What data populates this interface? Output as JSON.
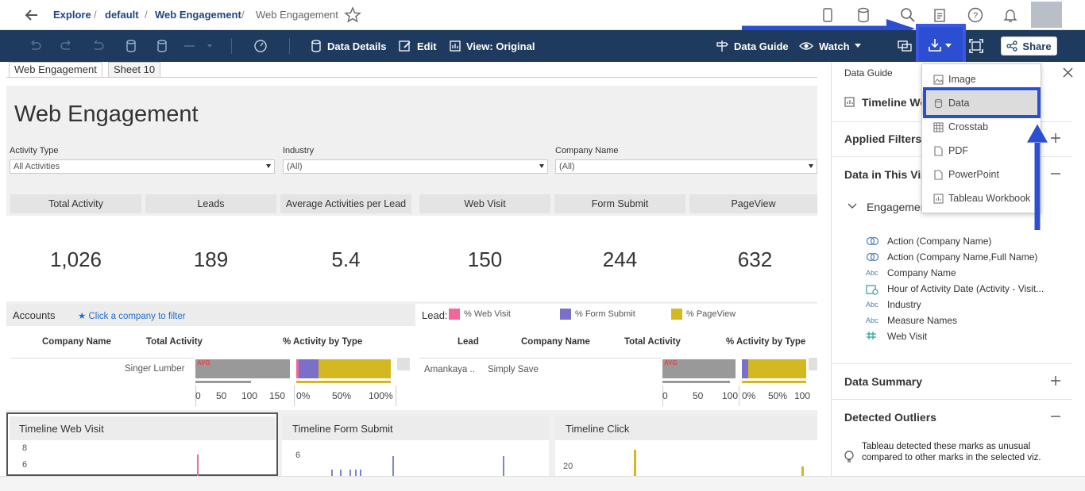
{
  "breadcrumb": {
    "back_icon": "arrow-left-icon",
    "items": [
      "Explore",
      "default",
      "Web Engagement"
    ],
    "current": "Web Engagement",
    "sep": "/"
  },
  "toolbar": {
    "data_details": "Data Details",
    "edit": "Edit",
    "view": "View: Original",
    "data_guide": "Data Guide",
    "watch": "Watch",
    "share": "Share"
  },
  "tabs": [
    "Web Engagement",
    "Sheet 10"
  ],
  "dashboard": {
    "title": "Web Engagement",
    "filters": [
      {
        "label": "Activity Type",
        "value": "All Activities"
      },
      {
        "label": "Industry",
        "value": "(All)"
      },
      {
        "label": "Company Name",
        "value": "(All)"
      }
    ],
    "kpis": [
      {
        "label": "Total Activity",
        "value": "1,026"
      },
      {
        "label": "Leads",
        "value": "189"
      },
      {
        "label": "Average Activities per Lead",
        "value": "5.4"
      },
      {
        "label": "Web Visit",
        "value": "150"
      },
      {
        "label": "Form Submit",
        "value": "244"
      },
      {
        "label": "PageView",
        "value": "632"
      }
    ],
    "accounts": {
      "title": "Accounts",
      "hint": "★ Click a company to filter",
      "columns": [
        "Company Name",
        "Total Activity",
        "% Activity by Type"
      ],
      "row_company": "Singer Lumber",
      "avg_label": "AVG",
      "ticks_activity": [
        "0",
        "50",
        "100",
        "150"
      ],
      "ticks_pct": [
        "0%",
        "50%",
        "100%"
      ]
    },
    "lead": {
      "title": "Lead:",
      "legend": [
        "% Web Visit",
        "% Form Submit",
        "% PageView"
      ],
      "columns": [
        "Lead",
        "Company Name",
        "Total Activity",
        "% Activity by Type"
      ],
      "row_lead": "Amankaya ..",
      "row_company": "Simply Save",
      "avg_label": "AVG",
      "ticks_activity": [
        "0",
        "50",
        "100"
      ],
      "ticks_pct": [
        "0%",
        "50%",
        "100"
      ]
    },
    "timelines": [
      {
        "title": "Timeline Web Visit",
        "yticks": [
          "8",
          "6"
        ]
      },
      {
        "title": "Timeline Form Submit",
        "yticks": [
          "6"
        ]
      },
      {
        "title": "Timeline Click",
        "yticks": [
          "20"
        ]
      }
    ]
  },
  "colors": {
    "web_visit": "#f0689b",
    "form_submit": "#7a6fc9",
    "pageview": "#d4b821",
    "toolbar": "#1f3a5f",
    "highlight": "#2b4fd0"
  },
  "dropdown": {
    "items": [
      {
        "label": "Image",
        "icon": "image-icon"
      },
      {
        "label": "Data",
        "icon": "database-icon",
        "selected": true
      },
      {
        "label": "Crosstab",
        "icon": "table-icon"
      },
      {
        "label": "PDF",
        "icon": "pdf-icon"
      },
      {
        "label": "PowerPoint",
        "icon": "powerpoint-icon"
      },
      {
        "label": "Tableau Workbook",
        "icon": "workbook-icon"
      }
    ]
  },
  "guide": {
    "header": "Data Guide",
    "sheet_title": "Timeline We",
    "applied_filters": "Applied Filters",
    "data_in_viz": "Data in This Viz",
    "engagement": "Engagemer",
    "fields": [
      {
        "name": "Action (Company Name)",
        "icon": "set-icon"
      },
      {
        "name": "Action (Company Name,Full Name)",
        "icon": "set-icon"
      },
      {
        "name": "Company Name",
        "icon": "abc-icon"
      },
      {
        "name": "Hour of Activity Date (Activity - Visit...",
        "icon": "date-icon"
      },
      {
        "name": "Industry",
        "icon": "abc-icon"
      },
      {
        "name": "Measure Names",
        "icon": "abc-icon"
      },
      {
        "name": "Web Visit",
        "icon": "number-icon"
      }
    ],
    "abc": "Abc",
    "data_summary": "Data Summary",
    "detected_outliers": "Detected Outliers",
    "outliers_text": "Tableau detected these marks as unusual compared to other marks in the selected viz."
  }
}
